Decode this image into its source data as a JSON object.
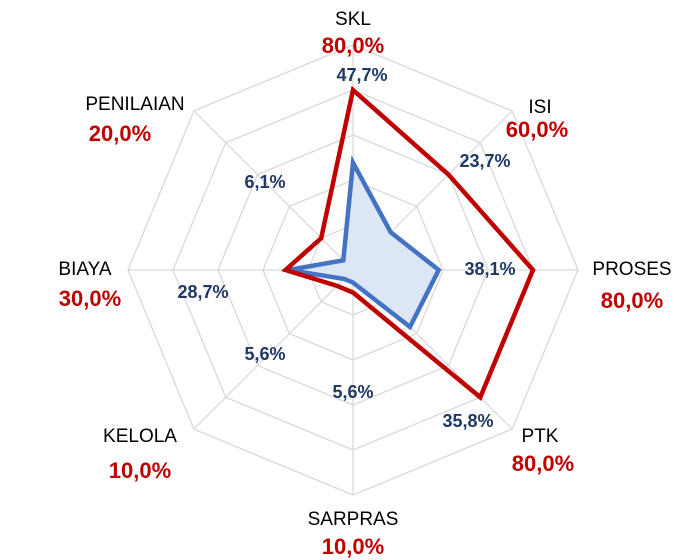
{
  "chart_data": {
    "type": "radar",
    "categories": [
      "SKL",
      "ISI",
      "PROSES",
      "PTK",
      "SARPRAS",
      "KELOLA",
      "BIAYA",
      "PENILAIAN"
    ],
    "series": [
      {
        "color": "#c00000",
        "values": [
          80,
          60,
          80,
          80,
          10,
          10,
          30,
          20
        ],
        "value_labels": [
          "80,0%",
          "60,0%",
          "80,0%",
          "80,0%",
          "10,0%",
          "10,0%",
          "30,0%",
          "20,0%"
        ]
      },
      {
        "color": "#4472c4",
        "fill": "#dce6f5",
        "label_color": "#1f3864",
        "values": [
          47.7,
          23.7,
          38.1,
          35.8,
          5.6,
          5.6,
          28.7,
          6.1
        ],
        "value_labels": [
          "47,7%",
          "23,7%",
          "38,1%",
          "35,8%",
          "5,6%",
          "5,6%",
          "28,7%",
          "6,1%"
        ]
      }
    ],
    "ylim": [
      0,
      100
    ],
    "yticks": [
      0,
      20,
      40,
      60,
      80,
      100
    ],
    "grid": true
  }
}
